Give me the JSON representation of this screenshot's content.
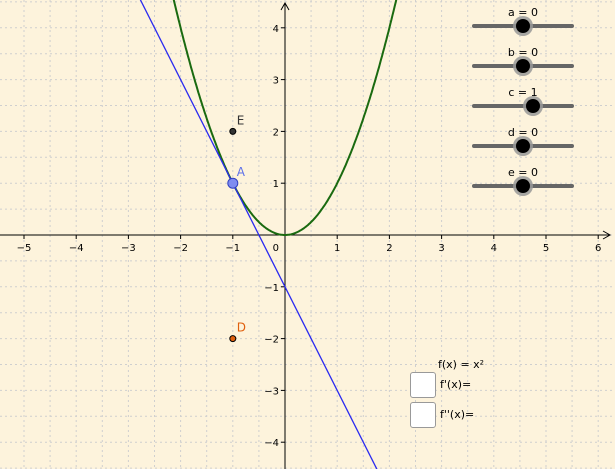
{
  "sliders": [
    {
      "id": "a",
      "label": "a = 0",
      "value": 0,
      "min": -5,
      "max": 5
    },
    {
      "id": "b",
      "label": "b = 0",
      "value": 0,
      "min": -5,
      "max": 5
    },
    {
      "id": "c",
      "label": "c = 1",
      "value": 1,
      "min": -5,
      "max": 5
    },
    {
      "id": "d",
      "label": "d = 0",
      "value": 0,
      "min": -5,
      "max": 5
    },
    {
      "id": "e",
      "label": "e = 0",
      "value": 0,
      "min": -5,
      "max": 5
    }
  ],
  "function_label": "f(x) = x²",
  "checkboxes": [
    {
      "label": "f'(x)=",
      "checked": false
    },
    {
      "label": "f''(x)=",
      "checked": false
    }
  ],
  "points": [
    {
      "name": "A",
      "x": -1,
      "y": 1,
      "color": "#5c6fe8"
    },
    {
      "name": "E",
      "x": -1,
      "y": 2,
      "color": "#333333"
    },
    {
      "name": "D",
      "x": -1,
      "y": -2,
      "color": "#e0600f"
    }
  ],
  "axes": {
    "x_ticks": [
      "−5",
      "−4",
      "−3",
      "−2",
      "−1",
      "1",
      "2",
      "3",
      "4",
      "5",
      "6"
    ],
    "y_ticks": [
      "4",
      "3",
      "2",
      "1",
      "−1",
      "−2",
      "−3",
      "−4"
    ],
    "origin_label": "0"
  },
  "colors": {
    "background": "#fdf3dc",
    "curve": "#1a6a10",
    "tangent": "#2a2af0",
    "grid": "#cfcfcf"
  }
}
